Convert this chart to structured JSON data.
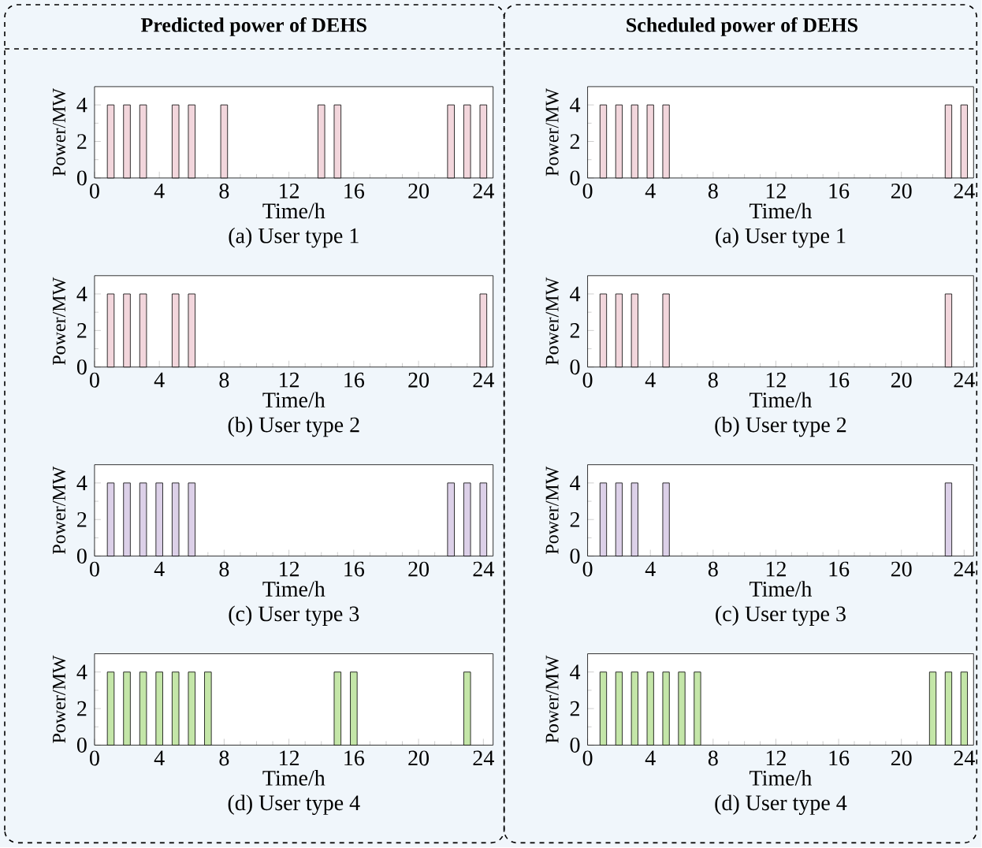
{
  "chart_data": [
    {
      "type": "bar",
      "title": "(a) User type 1",
      "xlabel": "Time/h",
      "ylabel": "Power/MW",
      "annotations": [
        "Predicted power of DEHS"
      ],
      "x": [
        1,
        2,
        3,
        5,
        6,
        8,
        14,
        15,
        22,
        23,
        24
      ],
      "values": [
        4,
        4,
        4,
        4,
        4,
        4,
        4,
        4,
        4,
        4,
        4
      ],
      "color": "#f2d6dc",
      "xlim": [
        0,
        24.6
      ],
      "ylim": [
        0,
        5
      ],
      "xticks": [
        0,
        4,
        8,
        12,
        16,
        20,
        24
      ],
      "yticks": [
        0,
        2,
        4
      ]
    },
    {
      "type": "bar",
      "title": "(a) User type 1",
      "xlabel": "Time/h",
      "ylabel": "Power/MW",
      "annotations": [
        "Scheduled power of DEHS"
      ],
      "x": [
        1,
        2,
        3,
        4,
        5,
        23,
        24
      ],
      "values": [
        4,
        4,
        4,
        4,
        4,
        4,
        4
      ],
      "color": "#f2d6dc",
      "xlim": [
        0,
        24.6
      ],
      "ylim": [
        0,
        5
      ],
      "xticks": [
        0,
        4,
        8,
        12,
        16,
        20,
        24
      ],
      "yticks": [
        0,
        2,
        4
      ]
    },
    {
      "type": "bar",
      "title": "(b) User type 2",
      "xlabel": "Time/h",
      "ylabel": "Power/MW",
      "x": [
        1,
        2,
        3,
        5,
        6,
        24
      ],
      "values": [
        4,
        4,
        4,
        4,
        4,
        4
      ],
      "color": "#f2d6dc",
      "xlim": [
        0,
        24.6
      ],
      "ylim": [
        0,
        5
      ],
      "xticks": [
        0,
        4,
        8,
        12,
        16,
        20,
        24
      ],
      "yticks": [
        0,
        2,
        4
      ]
    },
    {
      "type": "bar",
      "title": "(b) User type 2",
      "xlabel": "Time/h",
      "ylabel": "Power/MW",
      "x": [
        1,
        2,
        3,
        5,
        23
      ],
      "values": [
        4,
        4,
        4,
        4,
        4
      ],
      "color": "#f2d6dc",
      "xlim": [
        0,
        24.6
      ],
      "ylim": [
        0,
        5
      ],
      "xticks": [
        0,
        4,
        8,
        12,
        16,
        20,
        24
      ],
      "yticks": [
        0,
        2,
        4
      ]
    },
    {
      "type": "bar",
      "title": "(c) User type 3",
      "xlabel": "Time/h",
      "ylabel": "Power/MW",
      "x": [
        1,
        2,
        3,
        4,
        5,
        6,
        22,
        23,
        24
      ],
      "values": [
        4,
        4,
        4,
        4,
        4,
        4,
        4,
        4,
        4
      ],
      "color": "#dcd0e8",
      "xlim": [
        0,
        24.6
      ],
      "ylim": [
        0,
        5
      ],
      "xticks": [
        0,
        4,
        8,
        12,
        16,
        20,
        24
      ],
      "yticks": [
        0,
        2,
        4
      ]
    },
    {
      "type": "bar",
      "title": "(c) User type 3",
      "xlabel": "Time/h",
      "ylabel": "Power/MW",
      "x": [
        1,
        2,
        3,
        5,
        23
      ],
      "values": [
        4,
        4,
        4,
        4,
        4
      ],
      "color": "#dcd0e8",
      "xlim": [
        0,
        24.6
      ],
      "ylim": [
        0,
        5
      ],
      "xticks": [
        0,
        4,
        8,
        12,
        16,
        20,
        24
      ],
      "yticks": [
        0,
        2,
        4
      ]
    },
    {
      "type": "bar",
      "title": "(d) User type 4",
      "xlabel": "Time/h",
      "ylabel": "Power/MW",
      "x": [
        1,
        2,
        3,
        4,
        5,
        6,
        7,
        15,
        16,
        23
      ],
      "values": [
        4,
        4,
        4,
        4,
        4,
        4,
        4,
        4,
        4,
        4
      ],
      "color": "#c4e6a8",
      "xlim": [
        0,
        24.6
      ],
      "ylim": [
        0,
        5
      ],
      "xticks": [
        0,
        4,
        8,
        12,
        16,
        20,
        24
      ],
      "yticks": [
        0,
        2,
        4
      ]
    },
    {
      "type": "bar",
      "title": "(d) User type 4",
      "xlabel": "Time/h",
      "ylabel": "Power/MW",
      "x": [
        1,
        2,
        3,
        4,
        5,
        6,
        7,
        22,
        23,
        24
      ],
      "values": [
        4,
        4,
        4,
        4,
        4,
        4,
        4,
        4,
        4,
        4
      ],
      "color": "#c4e6a8",
      "xlim": [
        0,
        24.6
      ],
      "ylim": [
        0,
        5
      ],
      "xticks": [
        0,
        4,
        8,
        12,
        16,
        20,
        24
      ],
      "yticks": [
        0,
        2,
        4
      ]
    }
  ]
}
